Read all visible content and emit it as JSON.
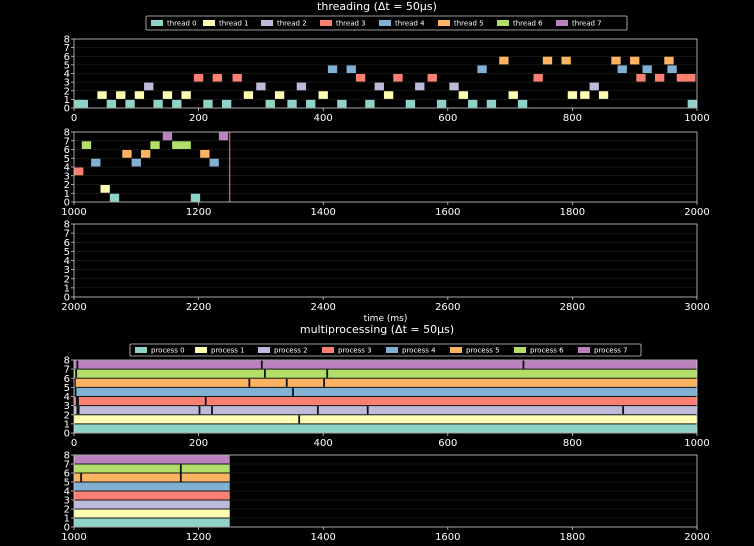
{
  "chart_data": [
    {
      "type": "bar",
      "title": "threading (Δt = 50μs)",
      "legend": {
        "placement": "top",
        "entries": [
          "thread 0",
          "thread 1",
          "thread 2",
          "thread 3",
          "thread 4",
          "thread 5",
          "thread 6",
          "thread 7"
        ]
      },
      "colors": [
        "#8dd3c7",
        "#feffb3",
        "#bebada",
        "#fb8072",
        "#81b1d2",
        "#fdb462",
        "#b3de69",
        "#bc82bd"
      ],
      "panels": [
        {
          "xlim": [
            0,
            1000
          ],
          "ylim": [
            0,
            8
          ],
          "xticks": [
            "0",
            "200",
            "400",
            "600",
            "800",
            "1000"
          ],
          "yticks": [
            "0",
            "1",
            "2",
            "3",
            "4",
            "5",
            "6",
            "7",
            "8"
          ],
          "block_width_ms": 15,
          "events": [
            [
              0,
              0
            ],
            [
              15,
              0
            ],
            [
              45,
              1
            ],
            [
              60,
              0
            ],
            [
              75,
              1
            ],
            [
              90,
              0
            ],
            [
              105,
              1
            ],
            [
              120,
              2
            ],
            [
              135,
              0
            ],
            [
              150,
              1
            ],
            [
              165,
              0
            ],
            [
              180,
              1
            ],
            [
              200,
              3
            ],
            [
              215,
              0
            ],
            [
              230,
              3
            ],
            [
              245,
              0
            ],
            [
              262,
              3
            ],
            [
              280,
              1
            ],
            [
              300,
              2
            ],
            [
              315,
              0
            ],
            [
              330,
              1
            ],
            [
              350,
              0
            ],
            [
              365,
              2
            ],
            [
              380,
              0
            ],
            [
              400,
              1
            ],
            [
              415,
              4
            ],
            [
              430,
              0
            ],
            [
              445,
              4
            ],
            [
              460,
              3
            ],
            [
              475,
              0
            ],
            [
              490,
              2
            ],
            [
              505,
              1
            ],
            [
              520,
              3
            ],
            [
              540,
              0
            ],
            [
              555,
              2
            ],
            [
              575,
              3
            ],
            [
              590,
              0
            ],
            [
              610,
              2
            ],
            [
              625,
              1
            ],
            [
              640,
              0
            ],
            [
              655,
              4
            ],
            [
              670,
              0
            ],
            [
              690,
              5
            ],
            [
              705,
              1
            ],
            [
              720,
              0
            ],
            [
              745,
              3
            ],
            [
              760,
              5
            ],
            [
              790,
              5
            ],
            [
              800,
              1
            ],
            [
              820,
              1
            ],
            [
              835,
              2
            ],
            [
              850,
              1
            ],
            [
              870,
              5
            ],
            [
              880,
              4
            ],
            [
              900,
              5
            ],
            [
              910,
              3
            ],
            [
              920,
              4
            ],
            [
              940,
              3
            ],
            [
              955,
              5
            ],
            [
              960,
              4
            ],
            [
              975,
              3
            ],
            [
              990,
              3
            ],
            [
              1000,
              0
            ]
          ]
        },
        {
          "xlim": [
            1000,
            2000
          ],
          "ylim": [
            0,
            8
          ],
          "xticks": [
            "1000",
            "1200",
            "1400",
            "1600",
            "1800",
            "2000"
          ],
          "yticks": [
            "0",
            "1",
            "2",
            "3",
            "4",
            "5",
            "6",
            "7",
            "8"
          ],
          "block_width_ms": 15,
          "events": [
            [
              1000,
              3
            ],
            [
              1020,
              6
            ],
            [
              1035,
              4
            ],
            [
              1050,
              1
            ],
            [
              1065,
              0
            ],
            [
              1085,
              5
            ],
            [
              1100,
              4
            ],
            [
              1115,
              5
            ],
            [
              1130,
              6
            ],
            [
              1150,
              7
            ],
            [
              1165,
              6
            ],
            [
              1180,
              6
            ],
            [
              1195,
              0
            ],
            [
              1210,
              5
            ],
            [
              1225,
              4
            ],
            [
              1240,
              7
            ]
          ],
          "end_line_x": 1250
        },
        {
          "xlim": [
            2000,
            3000
          ],
          "ylim": [
            0,
            8
          ],
          "xticks": [
            "2000",
            "2200",
            "2400",
            "2600",
            "2800",
            "3000"
          ],
          "yticks": [
            "0",
            "1",
            "2",
            "3",
            "4",
            "5",
            "6",
            "7",
            "8"
          ],
          "xlabel": "time (ms)",
          "events": []
        }
      ]
    },
    {
      "type": "bar",
      "title": "multiprocessing (Δt = 50μs)",
      "legend": {
        "placement": "top",
        "entries": [
          "process 0",
          "process 1",
          "process 2",
          "process 3",
          "process 4",
          "process 5",
          "process 6",
          "process 7"
        ]
      },
      "colors": [
        "#8dd3c7",
        "#feffb3",
        "#bebada",
        "#fb8072",
        "#81b1d2",
        "#fdb462",
        "#b3de69",
        "#bc82bd"
      ],
      "panels": [
        {
          "xlim": [
            0,
            1000
          ],
          "ylim": [
            0,
            8
          ],
          "xticks": [
            "0",
            "200",
            "400",
            "600",
            "800",
            "1000"
          ],
          "yticks": [
            "0",
            "1",
            "2",
            "3",
            "4",
            "5",
            "6",
            "7",
            "8"
          ],
          "bands": [
            [
              0,
              1000
            ],
            [
              0,
              1000
            ],
            [
              0,
              1000
            ],
            [
              0,
              1000
            ],
            [
              0,
              1000
            ],
            [
              0,
              1000
            ],
            [
              0,
              1000
            ],
            [
              0,
              1000
            ]
          ],
          "gaps": [
            [
              0,
              5
            ],
            [
              2,
              6
            ],
            [
              1,
              4
            ],
            [
              3,
              3
            ],
            [
              4,
              2
            ],
            [
              5,
              3
            ],
            [
              6,
              2
            ],
            [
              4,
              7
            ],
            [
              200,
              2
            ],
            [
              210,
              3
            ],
            [
              220,
              2
            ],
            [
              280,
              5
            ],
            [
              300,
              7
            ],
            [
              305,
              6
            ],
            [
              340,
              5
            ],
            [
              350,
              4
            ],
            [
              360,
              1
            ],
            [
              390,
              2
            ],
            [
              400,
              5
            ],
            [
              405,
              6
            ],
            [
              470,
              2
            ],
            [
              720,
              7
            ],
            [
              880,
              2
            ]
          ]
        },
        {
          "xlim": [
            1000,
            2000
          ],
          "ylim": [
            0,
            8
          ],
          "xticks": [
            "1000",
            "1200",
            "1400",
            "1600",
            "1800",
            "2000"
          ],
          "yticks": [
            "0",
            "1",
            "2",
            "3",
            "4",
            "5",
            "6",
            "7",
            "8"
          ],
          "bands": [
            [
              1000,
              1250
            ],
            [
              1000,
              1250
            ],
            [
              1000,
              1250
            ],
            [
              1000,
              1250
            ],
            [
              1000,
              1250
            ],
            [
              1000,
              1250
            ],
            [
              1000,
              1250
            ],
            [
              1000,
              1250
            ]
          ],
          "gaps": [
            [
              1010,
              5
            ],
            [
              1170,
              5
            ],
            [
              1170,
              6
            ]
          ]
        }
      ]
    }
  ]
}
